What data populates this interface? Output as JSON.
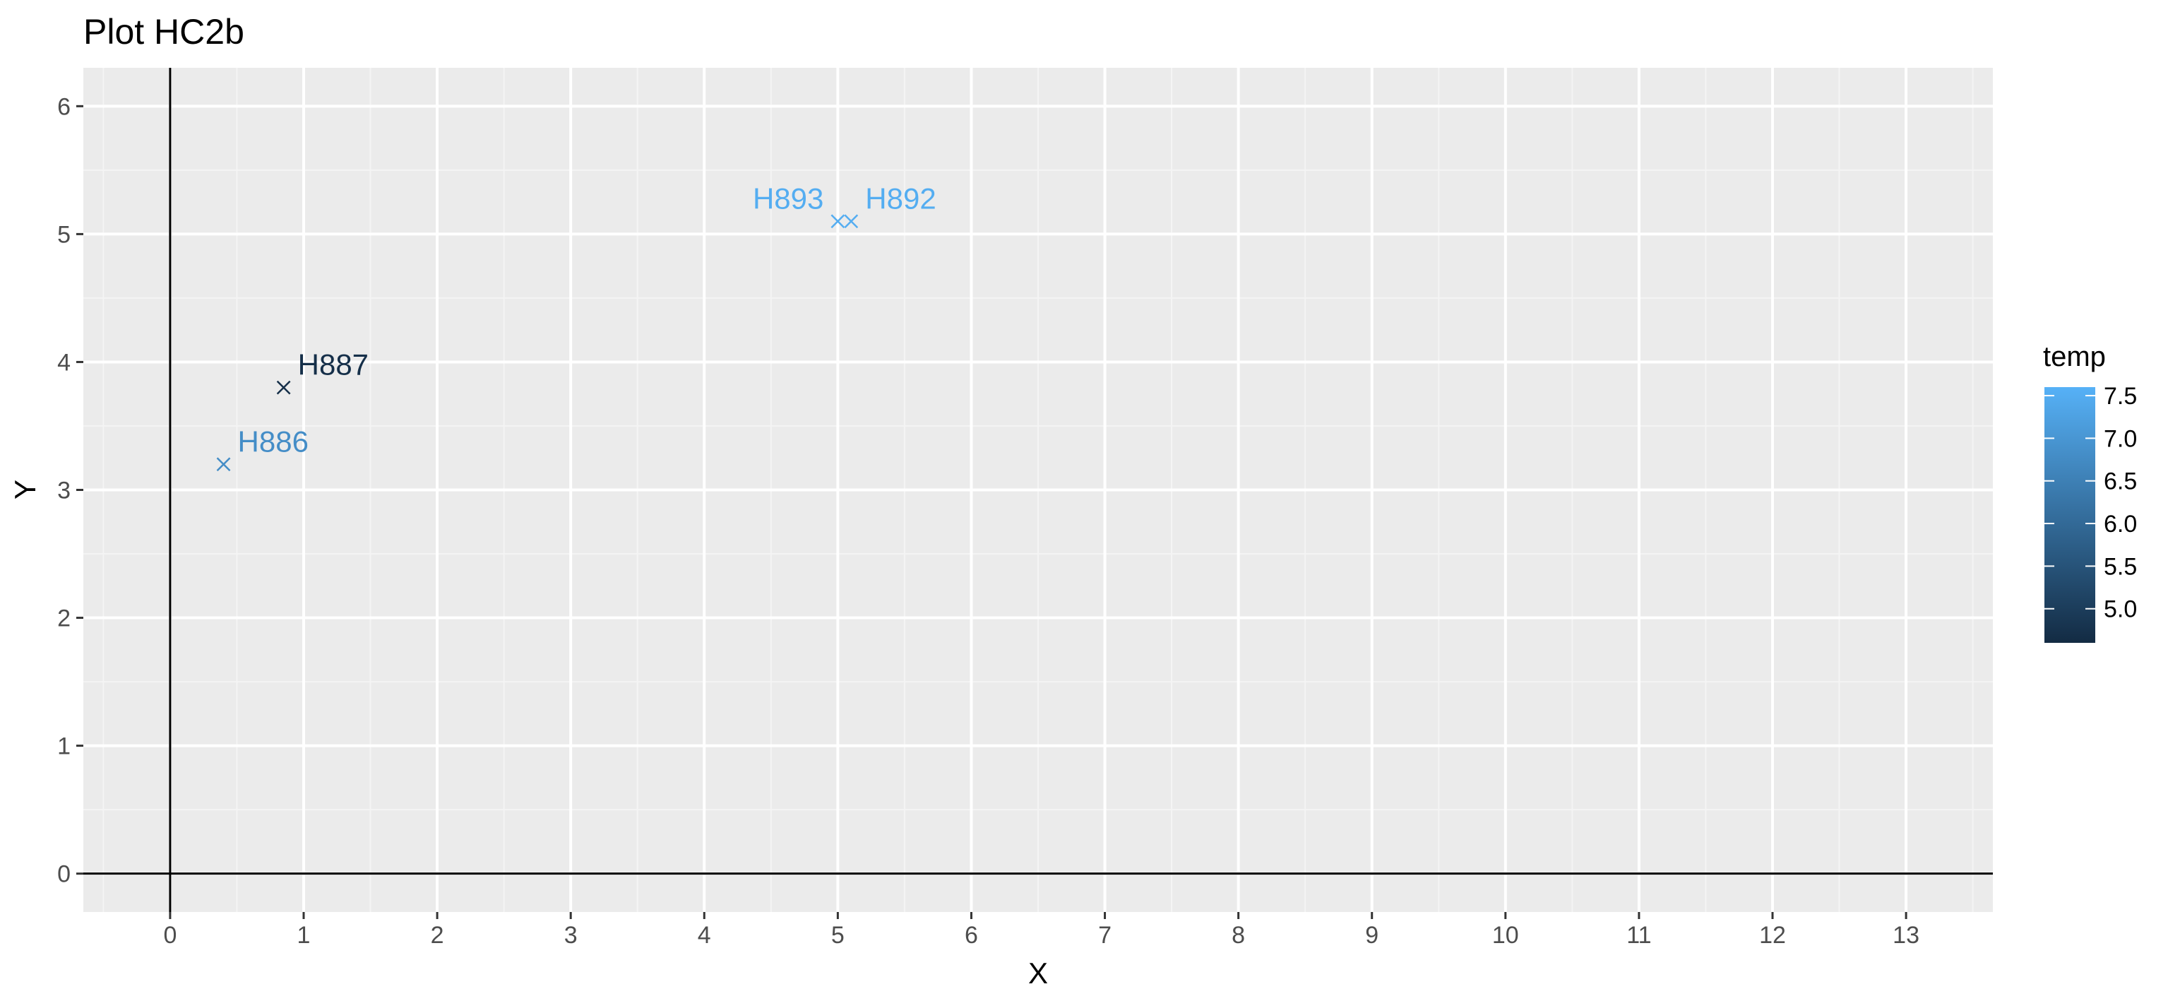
{
  "chart_data": {
    "type": "scatter",
    "title": "Plot HC2b",
    "xlabel": "X",
    "ylabel": "Y",
    "xlim": [
      -0.65,
      13.65
    ],
    "ylim": [
      -0.3,
      6.3
    ],
    "x_ticks": [
      "0",
      "1",
      "2",
      "3",
      "4",
      "5",
      "6",
      "7",
      "8",
      "9",
      "10",
      "11",
      "12",
      "13"
    ],
    "y_ticks": [
      "0",
      "1",
      "2",
      "3",
      "4",
      "5",
      "6"
    ],
    "grid": true,
    "reference_lines": {
      "x": 0,
      "y": 0
    },
    "marker": "x",
    "color_scale": {
      "name": "temp",
      "low": 4.6,
      "high": 7.6,
      "low_color": "#132b43",
      "high_color": "#56b1f7",
      "ticks": [
        "5.0",
        "5.5",
        "6.0",
        "6.5",
        "7.0",
        "7.5"
      ]
    },
    "legend_position": "right",
    "points": [
      {
        "label": "H886",
        "x": 0.4,
        "y": 3.2,
        "temp": 6.8,
        "label_side": "right"
      },
      {
        "label": "H887",
        "x": 0.85,
        "y": 3.8,
        "temp": 4.7,
        "label_side": "right"
      },
      {
        "label": "H893",
        "x": 5.0,
        "y": 5.1,
        "temp": 7.5,
        "label_side": "left"
      },
      {
        "label": "H892",
        "x": 5.1,
        "y": 5.1,
        "temp": 7.5,
        "label_side": "right"
      }
    ]
  }
}
